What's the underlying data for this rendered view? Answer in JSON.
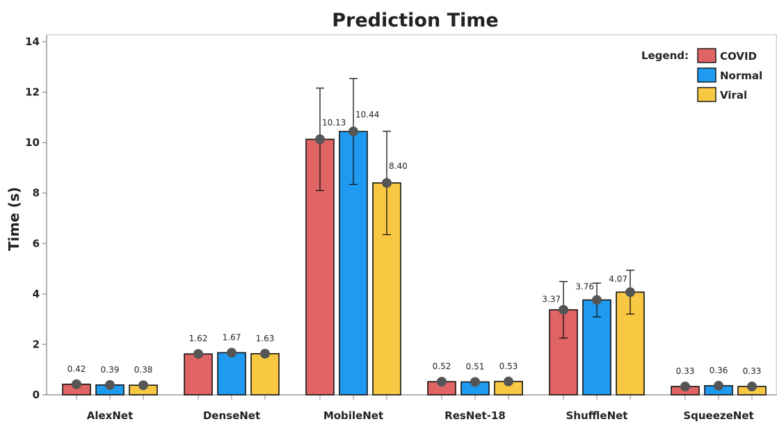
{
  "chart_data": {
    "type": "bar",
    "title": "Prediction Time",
    "xlabel": "",
    "ylabel": "Time (s)",
    "ylim": [
      0,
      14
    ],
    "yticks": [
      0,
      2,
      4,
      6,
      8,
      10,
      12,
      14
    ],
    "grid": false,
    "legend": {
      "title": "Legend:",
      "position": "top-right"
    },
    "categories": [
      "AlexNet",
      "DenseNet",
      "MobileNet",
      "ResNet-18",
      "ShuffleNet",
      "SqueezeNet"
    ],
    "series": [
      {
        "name": "COVID",
        "color": "#E06464",
        "values": [
          0.42,
          1.62,
          10.13,
          0.52,
          3.37,
          0.33
        ],
        "value_labels": [
          "0.42",
          "1.62",
          "10.13",
          "0.52",
          "3.37",
          "0.33"
        ],
        "error": [
          null,
          null,
          2.03,
          null,
          1.12,
          null
        ]
      },
      {
        "name": "Normal",
        "color": "#1E9BF0",
        "values": [
          0.39,
          1.67,
          10.44,
          0.51,
          3.76,
          0.36
        ],
        "value_labels": [
          "0.39",
          "1.67",
          "10.44",
          "0.51",
          "3.76",
          "0.36"
        ],
        "error": [
          null,
          null,
          2.1,
          null,
          0.67,
          null
        ]
      },
      {
        "name": "Viral",
        "color": "#F8C842",
        "values": [
          0.38,
          1.63,
          8.4,
          0.53,
          4.07,
          0.33
        ],
        "value_labels": [
          "0.38",
          "1.63",
          "8.40",
          "0.53",
          "4.07",
          "0.33"
        ],
        "error": [
          null,
          null,
          2.05,
          null,
          0.87,
          null
        ]
      }
    ],
    "marker_color": "#555555"
  }
}
